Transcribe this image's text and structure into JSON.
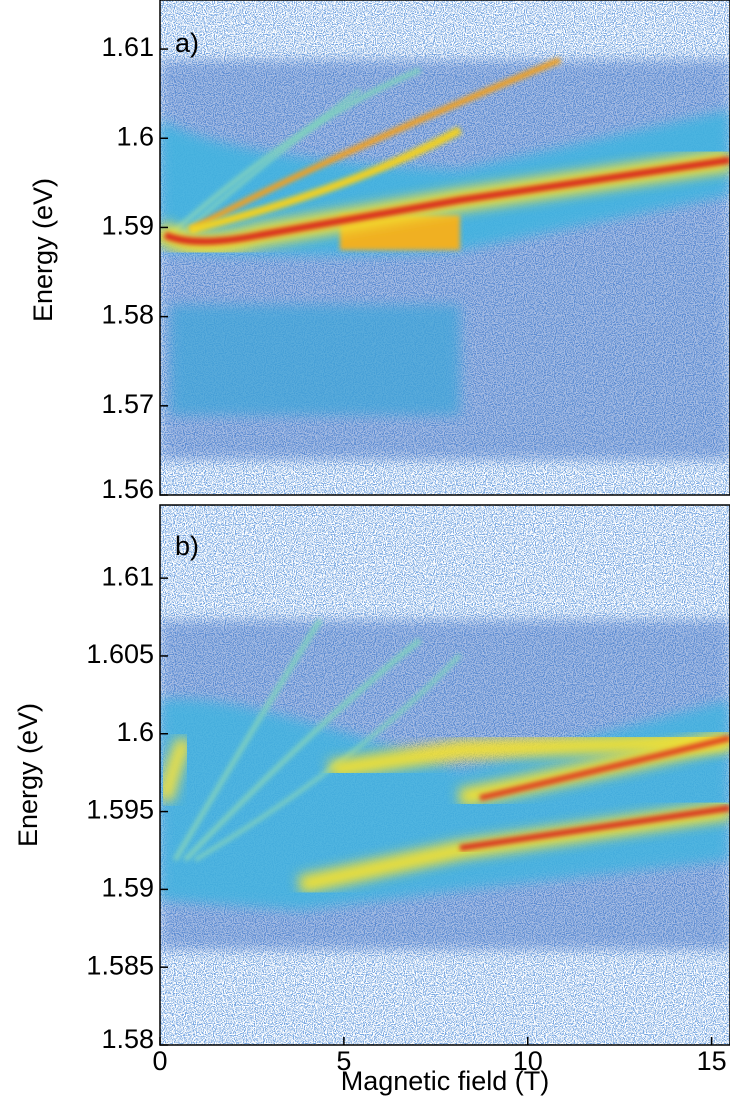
{
  "chart_data": [
    {
      "type": "heatmap",
      "panel_label": "a)",
      "ylabel": "Energy (eV)",
      "xlim": [
        0,
        15.5
      ],
      "ylim": [
        1.56,
        1.6155
      ],
      "yticks": [
        1.56,
        1.57,
        1.58,
        1.59,
        1.6,
        1.61
      ]
    },
    {
      "type": "heatmap",
      "panel_label": "b)",
      "ylabel": "Energy (eV)",
      "xlabel": "Magnetic field (T)",
      "xlim": [
        0,
        15.5
      ],
      "ylim": [
        1.58,
        1.6147
      ],
      "xticks": [
        0,
        5,
        10,
        15
      ],
      "yticks": [
        1.58,
        1.585,
        1.59,
        1.595,
        1.6,
        1.605,
        1.61
      ]
    }
  ]
}
